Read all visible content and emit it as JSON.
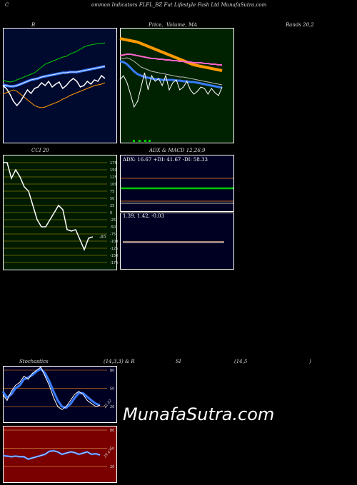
{
  "header": {
    "c_label": "C",
    "title": "ommon  Indicators FLFL_BZ Fut Lifestyle  Fash Ltd MunafaSutra.com"
  },
  "labels": {
    "b": "B",
    "price": "Price,",
    "volume": "Volume,",
    "ma": "MA",
    "bands": "Bands 20,2",
    "cci": "CCI 20",
    "adx_title": "ADX  & MACD 12,26,9",
    "adx_values": "ADX: 16.67 +DI: 41.67 -DI: 58.33",
    "macd_values": "1.39,  1.42,  -0.03",
    "stoch_title": "Stochastics",
    "stoch_params": "(14,3,3) & R",
    "rsi_si": "SI",
    "rsi_params": "(14,5",
    "rsi_close": ")",
    "cci_current": "-85",
    "stoch_current": "22.02",
    "rsi_current": "39.47",
    "watermark": "MunafaSutra.com"
  },
  "cci_ticks": [
    "175",
    "150",
    "125",
    "100",
    "75",
    "50",
    "25",
    "0",
    "-25",
    "-50",
    "-75",
    "-100",
    "-125",
    "-150",
    "-175"
  ],
  "stoch_ticks": [
    "80",
    "50",
    "20"
  ],
  "rsi_ticks": [
    "80",
    "50",
    "20"
  ],
  "colors": {
    "bollinger_bg": "#000a2e",
    "price_bg": "#002200",
    "cci_bg": "#001a00",
    "adx_bg": "#000022",
    "rsi_bg": "#7a0000",
    "grid_orange": "#b5651d",
    "blue": "#3a7bff",
    "orange": "#ff9900",
    "green": "#00cc00",
    "pink": "#ff66cc"
  },
  "chart_data": [
    {
      "type": "line",
      "panel": "bollinger",
      "series": [
        {
          "role": "upper",
          "values": [
            82,
            80,
            79,
            80,
            82,
            84,
            86,
            88,
            90,
            92,
            96,
            100,
            104,
            106,
            108,
            110,
            112,
            114,
            115,
            118,
            120,
            122,
            125,
            128,
            130,
            131,
            132,
            133,
            133,
            134
          ]
        },
        {
          "role": "middle",
          "values": [
            75,
            74,
            73,
            73,
            74,
            76,
            78,
            80,
            82,
            83,
            84,
            86,
            87,
            88,
            89,
            90,
            91,
            92,
            92,
            93,
            93,
            93,
            94,
            95,
            96,
            97,
            98,
            99,
            100,
            101
          ]
        },
        {
          "role": "lower",
          "values": [
            62,
            64,
            66,
            68,
            66,
            62,
            58,
            54,
            50,
            46,
            44,
            43,
            44,
            46,
            48,
            50,
            52,
            55,
            57,
            60,
            62,
            64,
            66,
            68,
            70,
            72,
            74,
            75,
            76,
            78
          ]
        },
        {
          "role": "price",
          "values": [
            74,
            70,
            62,
            52,
            46,
            52,
            60,
            68,
            63,
            70,
            72,
            78,
            74,
            80,
            72,
            76,
            79,
            70,
            74,
            80,
            84,
            80,
            72,
            74,
            80,
            76,
            82,
            80,
            88,
            84
          ]
        }
      ]
    },
    {
      "type": "line",
      "panel": "price_ma",
      "series": [
        {
          "role": "ma_long",
          "values": [
            140,
            139,
            138,
            137,
            136,
            135,
            133,
            131,
            129,
            127,
            125,
            123,
            121,
            119,
            117,
            115,
            113,
            111,
            109,
            107,
            105,
            103,
            102,
            101,
            100,
            99,
            98,
            97,
            96,
            95
          ]
        },
        {
          "role": "ma_mid",
          "values": [
            116,
            117,
            118,
            118,
            117,
            116,
            115,
            114,
            113,
            112,
            112,
            111,
            111,
            110,
            110,
            109,
            109,
            108,
            108,
            107,
            107,
            106,
            106,
            106,
            105,
            105,
            104,
            104,
            103,
            103
          ]
        },
        {
          "role": "ma_short",
          "values": [
            112,
            112,
            113,
            111,
            108,
            104,
            100,
            98,
            96,
            94,
            93,
            92,
            91,
            90,
            89,
            88,
            87,
            86,
            86,
            85,
            84,
            83,
            82,
            81,
            80,
            79,
            78,
            77,
            76,
            75
          ]
        },
        {
          "role": "ma_fast",
          "values": [
            108,
            107,
            104,
            99,
            94,
            90,
            88,
            86,
            85,
            84,
            83,
            83,
            82,
            82,
            82,
            82,
            81,
            81,
            80,
            80,
            79,
            79,
            78,
            77,
            76,
            75,
            74,
            73,
            72,
            71
          ]
        },
        {
          "role": "price",
          "values": [
            82,
            88,
            78,
            62,
            44,
            52,
            72,
            92,
            68,
            88,
            80,
            84,
            74,
            88,
            68,
            78,
            82,
            68,
            72,
            80,
            68,
            62,
            66,
            72,
            70,
            62,
            70,
            64,
            60,
            72
          ]
        }
      ]
    },
    {
      "type": "line",
      "panel": "cci",
      "series": [
        {
          "role": "cci",
          "values": [
            175,
            175,
            120,
            150,
            125,
            90,
            75,
            25,
            -25,
            -50,
            -50,
            -25,
            0,
            25,
            10,
            -60,
            -65,
            -60,
            -95,
            -130,
            -90,
            -85
          ]
        }
      ]
    },
    {
      "type": "line",
      "panel": "stochastics",
      "series": [
        {
          "role": "fast",
          "values": [
            40,
            30,
            45,
            55,
            60,
            70,
            65,
            75,
            80,
            85,
            70,
            55,
            35,
            20,
            15,
            20,
            30,
            40,
            45,
            40,
            30,
            25,
            20,
            22
          ]
        },
        {
          "role": "slow",
          "values": [
            45,
            35,
            40,
            50,
            55,
            65,
            68,
            72,
            78,
            82,
            75,
            62,
            45,
            30,
            20,
            18,
            24,
            34,
            42,
            42,
            36,
            30,
            25,
            22
          ]
        }
      ]
    },
    {
      "type": "line",
      "panel": "rsi",
      "series": [
        {
          "role": "rsi",
          "values": [
            38,
            37,
            36,
            37,
            36,
            36,
            32,
            34,
            36,
            38,
            40,
            45,
            46,
            44,
            40,
            42,
            44,
            43,
            40,
            42,
            44,
            40,
            41,
            39
          ]
        }
      ]
    }
  ]
}
